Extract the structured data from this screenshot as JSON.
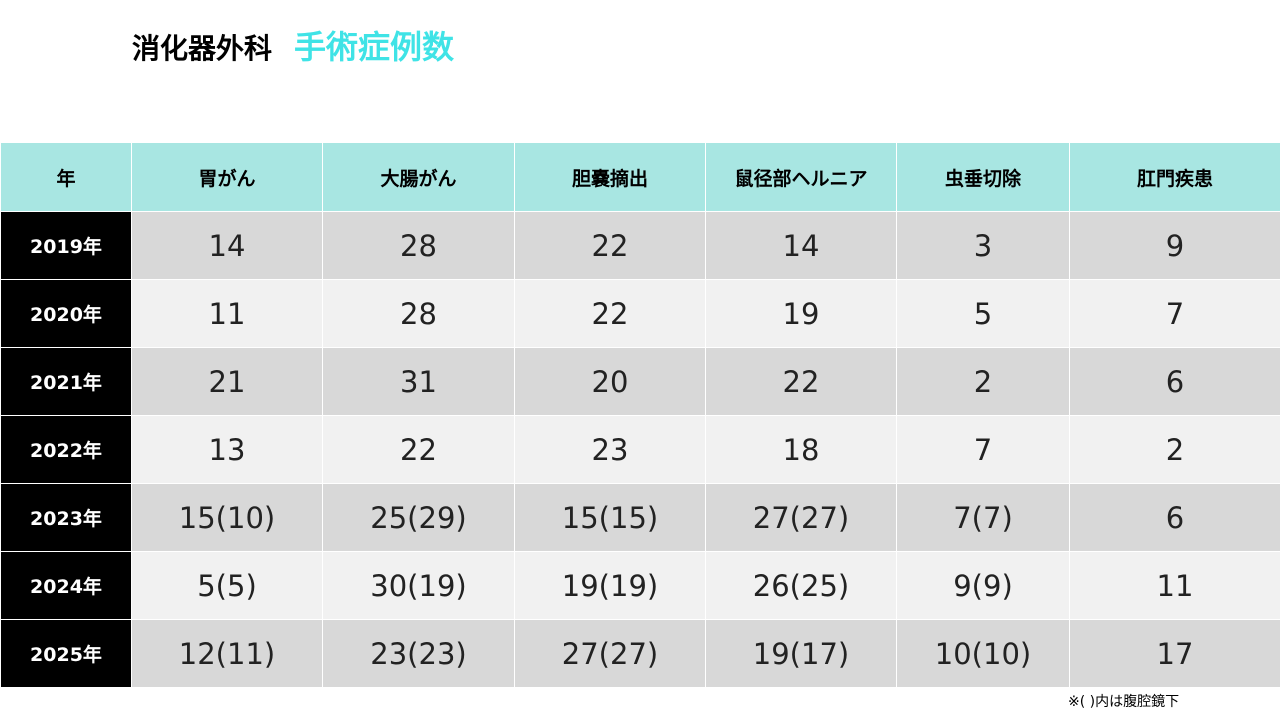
{
  "title": {
    "department": "消化器外科",
    "main": "手術症例数"
  },
  "table": {
    "headers": [
      "年",
      "胃がん",
      "大腸がん",
      "胆嚢摘出",
      "鼠径部ヘルニア",
      "虫垂切除",
      "肛門疾患"
    ],
    "rows": [
      {
        "year": "2019年",
        "values": [
          "14",
          "28",
          "22",
          "14",
          "3",
          "9"
        ]
      },
      {
        "year": "2020年",
        "values": [
          "11",
          "28",
          "22",
          "19",
          "5",
          "7"
        ]
      },
      {
        "year": "2021年",
        "values": [
          "21",
          "31",
          "20",
          "22",
          "2",
          "6"
        ]
      },
      {
        "year": "2022年",
        "values": [
          "13",
          "22",
          "23",
          "18",
          "7",
          "2"
        ]
      },
      {
        "year": "2023年",
        "values": [
          "15(10)",
          "25(29)",
          "15(15)",
          "27(27)",
          "7(7)",
          "6"
        ]
      },
      {
        "year": "2024年",
        "values": [
          "5(5)",
          "30(19)",
          "19(19)",
          "26(25)",
          "9(9)",
          "11"
        ]
      },
      {
        "year": "2025年",
        "values": [
          "12(11)",
          "23(23)",
          "27(27)",
          "19(17)",
          "10(10)",
          "17"
        ]
      }
    ]
  },
  "footnote": "※( )内は腹腔鏡下",
  "colors": {
    "accent": "#3fe3e6",
    "header_bg": "#a8e6e2",
    "year_bg": "#000000",
    "row_dark": "#d8d8d8",
    "row_light": "#f1f1f1"
  }
}
